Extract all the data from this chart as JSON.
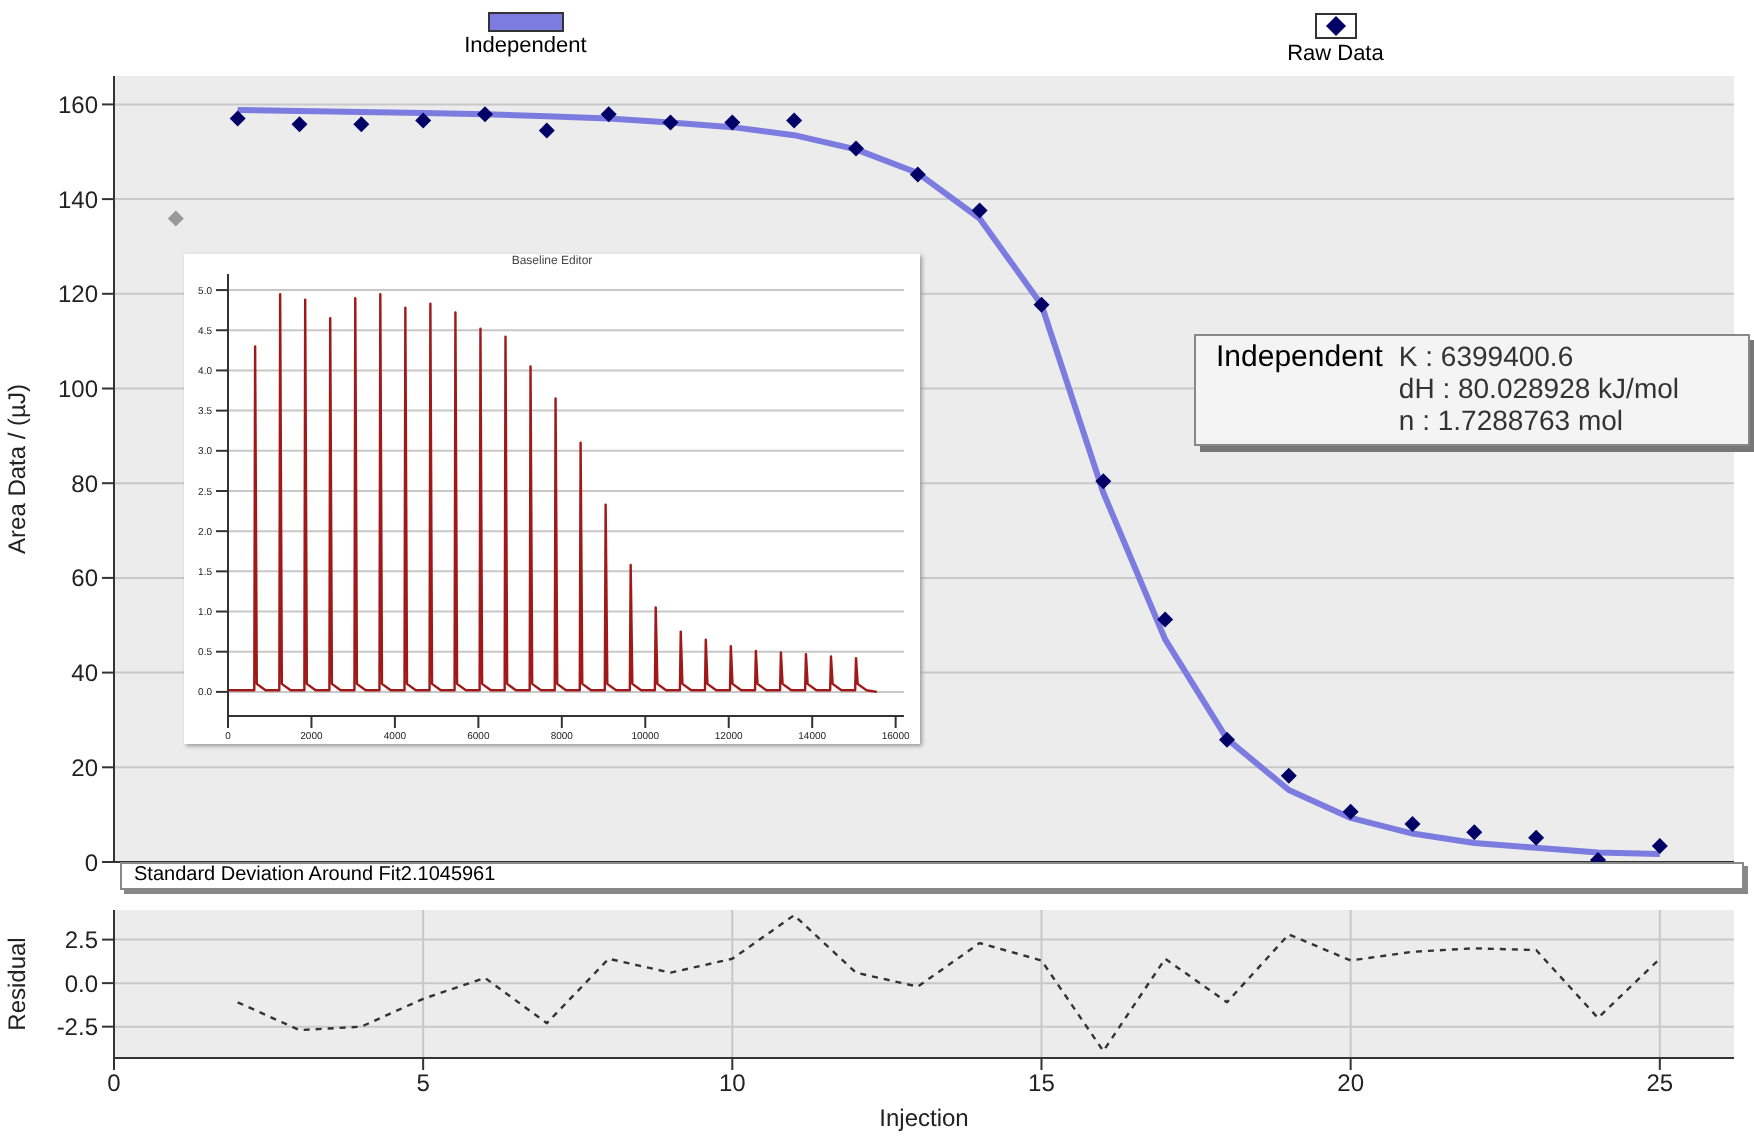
{
  "chart_data": [
    {
      "type": "scatter",
      "ylabel": "Area Data / (µJ)",
      "xlim": [
        0,
        26.2
      ],
      "ylim": [
        0,
        166
      ],
      "xticks": [
        0,
        5,
        10,
        15,
        20,
        25
      ],
      "yticks": [
        0,
        20,
        40,
        60,
        80,
        100,
        120,
        140,
        160
      ],
      "grid": true,
      "legend": "top",
      "tick_labels": "y",
      "annotations": [
        "Independent",
        "K : 6399400.6",
        "dH : 80.028928 kJ/mol",
        "n : 1.7288763 mol"
      ],
      "series": [
        {
          "name": "Independent",
          "type": "line",
          "color": "#7b7be0",
          "marker": "none",
          "x": [
            2,
            3,
            4,
            5,
            6,
            7,
            8,
            9,
            10,
            11,
            12,
            13,
            14,
            15,
            16,
            17,
            18,
            19,
            20,
            21,
            22,
            23,
            24,
            25
          ],
          "values": [
            158.8,
            158.6,
            158.4,
            158.2,
            157.9,
            157.5,
            157,
            156.2,
            155.2,
            153.5,
            150.5,
            145.5,
            135.9,
            117.7,
            78,
            47,
            26,
            15.2,
            9.3,
            6,
            4,
            3,
            2,
            1.7
          ]
        },
        {
          "name": "Raw Data",
          "type": "scatter",
          "color": "#000066",
          "marker": "diamond",
          "x": [
            2,
            3,
            4,
            5,
            6,
            7,
            8,
            9,
            10,
            11,
            12,
            13,
            14,
            15,
            16,
            17,
            18,
            19,
            20,
            21,
            22,
            23,
            24,
            25
          ],
          "values": [
            157,
            155.8,
            155.8,
            156.6,
            157.9,
            154.5,
            157.9,
            156.2,
            156.2,
            156.6,
            150.7,
            145.2,
            137.6,
            117.7,
            80.4,
            51.2,
            25.8,
            18.2,
            10.6,
            8,
            6.3,
            5.1,
            0.4,
            3.4
          ]
        },
        {
          "type": "scatter",
          "color": "#999999",
          "marker": "diamond",
          "x": [
            1
          ],
          "values": [
            135.9
          ]
        }
      ]
    },
    {
      "type": "line",
      "xlabel": "Injection",
      "ylabel": "Residual",
      "xlim": [
        0,
        26.2
      ],
      "ylim": [
        -4.3,
        4.2
      ],
      "xticks": [
        0,
        5,
        10,
        15,
        20,
        25
      ],
      "yticks": [
        {
          "value": -2.5,
          "label": "-2.5"
        },
        {
          "value": 0,
          "label": "0.0"
        },
        2.5
      ],
      "grid": true,
      "annotations": [
        "Standard Deviation Around Fit2.1045961"
      ],
      "series": [
        {
          "color": "#333333",
          "marker": "none",
          "line_style": "dashed",
          "x": [
            2,
            3,
            4,
            5,
            6,
            7,
            8,
            9,
            10,
            11,
            12,
            13,
            14,
            15,
            16,
            17,
            18,
            19,
            20,
            21,
            22,
            23,
            24,
            25
          ],
          "values": [
            -1.1,
            -2.7,
            -2.5,
            -0.9,
            0.3,
            -2.3,
            1.4,
            0.6,
            1.4,
            3.9,
            0.6,
            -0.2,
            2.3,
            1.3,
            -3.9,
            1.4,
            -1.1,
            2.8,
            1.3,
            1.8,
            2,
            1.9,
            -2,
            1.4
          ]
        }
      ]
    },
    {
      "type": "line",
      "title": "Baseline Editor",
      "xlim": [
        0,
        16200
      ],
      "ylim": [
        -0.3,
        5.2
      ],
      "xticks": [
        0,
        2000,
        4000,
        6000,
        8000,
        10000,
        12000,
        14000,
        16000
      ],
      "yticks": [
        {
          "value": 0,
          "label": "0.0"
        },
        0.5,
        {
          "value": 1,
          "label": "1.0"
        },
        1.5,
        {
          "value": 2,
          "label": "2.0"
        },
        2.5,
        {
          "value": 3,
          "label": "3.0"
        },
        3.5,
        {
          "value": 4,
          "label": "4.0"
        },
        4.5,
        {
          "value": 5,
          "label": "5.0"
        }
      ],
      "grid": "y",
      "series": [
        {
          "color": "#a01818",
          "marker": "none",
          "x": [
            0,
            630,
            650,
            690,
            900,
            1230,
            1250,
            1290,
            1500,
            1830,
            1850,
            1890,
            2100,
            2430,
            2450,
            2490,
            2700,
            3030,
            3050,
            3090,
            3300,
            3630,
            3650,
            3690,
            3900,
            4230,
            4250,
            4290,
            4500,
            4830,
            4850,
            4890,
            5100,
            5430,
            5450,
            5490,
            5700,
            6030,
            6050,
            6090,
            6300,
            6630,
            6650,
            6690,
            6900,
            7230,
            7250,
            7290,
            7500,
            7830,
            7850,
            7890,
            8100,
            8430,
            8450,
            8490,
            8700,
            9030,
            9050,
            9090,
            9300,
            9630,
            9650,
            9690,
            9900,
            10230,
            10250,
            10290,
            10500,
            10830,
            10850,
            10890,
            11100,
            11430,
            11450,
            11490,
            11700,
            12030,
            12050,
            12090,
            12300,
            12630,
            12650,
            12690,
            12900,
            13230,
            13250,
            13290,
            13500,
            13830,
            13850,
            13890,
            14100,
            14430,
            14450,
            14490,
            14700,
            15030,
            15050,
            15090,
            15300,
            15550
          ],
          "values": [
            0.02,
            0.02,
            4.3,
            0.1,
            0.02,
            0.02,
            4.95,
            0.1,
            0.02,
            0.02,
            4.88,
            0.1,
            0.02,
            0.02,
            4.65,
            0.1,
            0.02,
            0.02,
            4.9,
            0.1,
            0.02,
            0.02,
            4.95,
            0.1,
            0.02,
            0.02,
            4.78,
            0.1,
            0.02,
            0.02,
            4.83,
            0.1,
            0.02,
            0.02,
            4.72,
            0.1,
            0.02,
            0.02,
            4.52,
            0.1,
            0.02,
            0.02,
            4.42,
            0.1,
            0.02,
            0.02,
            4.05,
            0.1,
            0.02,
            0.02,
            3.65,
            0.1,
            0.02,
            0.02,
            3.1,
            0.1,
            0.02,
            0.02,
            2.33,
            0.1,
            0.02,
            0.02,
            1.58,
            0.1,
            0.02,
            0.02,
            1.05,
            0.1,
            0.02,
            0.02,
            0.75,
            0.1,
            0.02,
            0.02,
            0.65,
            0.1,
            0.02,
            0.02,
            0.57,
            0.1,
            0.02,
            0.02,
            0.51,
            0.1,
            0.02,
            0.02,
            0.49,
            0.1,
            0.02,
            0.02,
            0.47,
            0.1,
            0.02,
            0.02,
            0.44,
            0.1,
            0.02,
            0.02,
            0.42,
            0.1,
            0.02,
            0.0
          ]
        }
      ]
    }
  ]
}
